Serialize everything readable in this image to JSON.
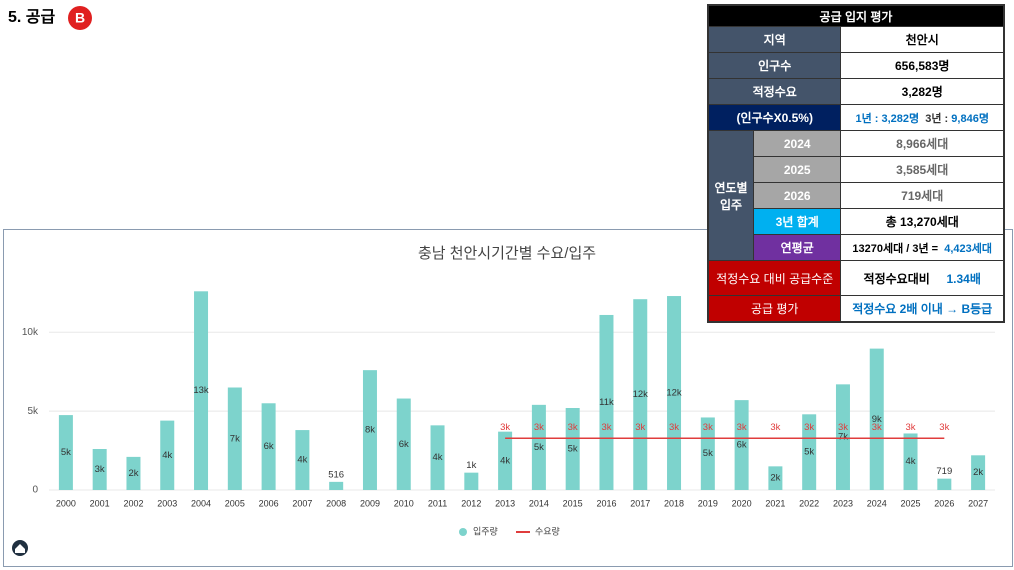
{
  "header": {
    "title": "5. 공급",
    "grade": "B"
  },
  "table": {
    "title": "공급 입지 평가",
    "region": {
      "label": "지역",
      "value": "천안시"
    },
    "population": {
      "label": "인구수",
      "value": "656,583명"
    },
    "demand": {
      "label": "적정수요",
      "value": "3,282명"
    },
    "formula": {
      "label": "(인구수X0.5%)",
      "y1_label": "1년 :",
      "y1_value": "3,282명",
      "y3_label": "3년 :",
      "y3_value": "9,846명"
    },
    "move_in": {
      "label": "연도별 입주",
      "rows": [
        {
          "label": "2024",
          "value": "8,966세대"
        },
        {
          "label": "2025",
          "value": "3,585세대"
        },
        {
          "label": "2026",
          "value": "719세대"
        }
      ],
      "total": {
        "label": "3년 합계",
        "value": "총 13,270세대"
      },
      "average": {
        "label": "연평균",
        "formula": "13270세대 / 3년 =",
        "value": "4,423세대"
      }
    },
    "supply_level": {
      "label": "적정수요 대비 공급수준",
      "text": "적정수요대비",
      "value": "1.34배"
    },
    "evaluation": {
      "label": "공급 평가",
      "value": "적정수요 2배 이내 → B등급"
    }
  },
  "chart_data": {
    "type": "bar",
    "title": "충남 천안시기간별 수요/입주",
    "categories": [
      "2000",
      "2001",
      "2002",
      "2003",
      "2004",
      "2005",
      "2006",
      "2007",
      "2008",
      "2009",
      "2010",
      "2011",
      "2012",
      "2013",
      "2014",
      "2015",
      "2016",
      "2017",
      "2018",
      "2019",
      "2020",
      "2021",
      "2022",
      "2023",
      "2024",
      "2025",
      "2026",
      "2027"
    ],
    "series": [
      {
        "name": "입주량",
        "type": "bar",
        "color": "#7dd3cc",
        "values": [
          4750,
          2600,
          2100,
          4400,
          12600,
          6500,
          5500,
          3800,
          516,
          7600,
          5800,
          4100,
          1100,
          3700,
          5400,
          5200,
          11100,
          12100,
          12300,
          4600,
          5700,
          1500,
          4800,
          6700,
          8966,
          3585,
          719,
          2200
        ],
        "value_labels": [
          "5k",
          "3k",
          "2k",
          "4k",
          "13k",
          "7k",
          "6k",
          "4k",
          "516",
          "8k",
          "6k",
          "4k",
          "1k",
          "4k",
          "5k",
          "5k",
          "11k",
          "12k",
          "12k",
          "5k",
          "6k",
          "2k",
          "5k",
          "7k",
          "9k",
          "4k",
          "719",
          "2k"
        ]
      },
      {
        "name": "수요량",
        "type": "line",
        "color": "#e03c3c",
        "values": [
          null,
          null,
          null,
          null,
          null,
          null,
          null,
          null,
          null,
          null,
          null,
          null,
          null,
          3282,
          3282,
          3282,
          3282,
          3282,
          3282,
          3282,
          3282,
          3282,
          3282,
          3282,
          3282,
          3282,
          3282,
          null
        ],
        "value_labels": [
          null,
          null,
          null,
          null,
          null,
          null,
          null,
          null,
          null,
          null,
          null,
          null,
          null,
          "3k",
          "3k",
          "3k",
          "3k",
          "3k",
          "3k",
          "3k",
          "3k",
          "3k",
          "3k",
          "3k",
          "3k",
          "3k",
          "3k",
          null
        ]
      }
    ],
    "ylim": [
      0,
      13000
    ],
    "yticks": [
      0,
      {
        "value": 5000,
        "label": "5k"
      },
      {
        "value": 10000,
        "label": "10k"
      }
    ],
    "grid": true
  }
}
